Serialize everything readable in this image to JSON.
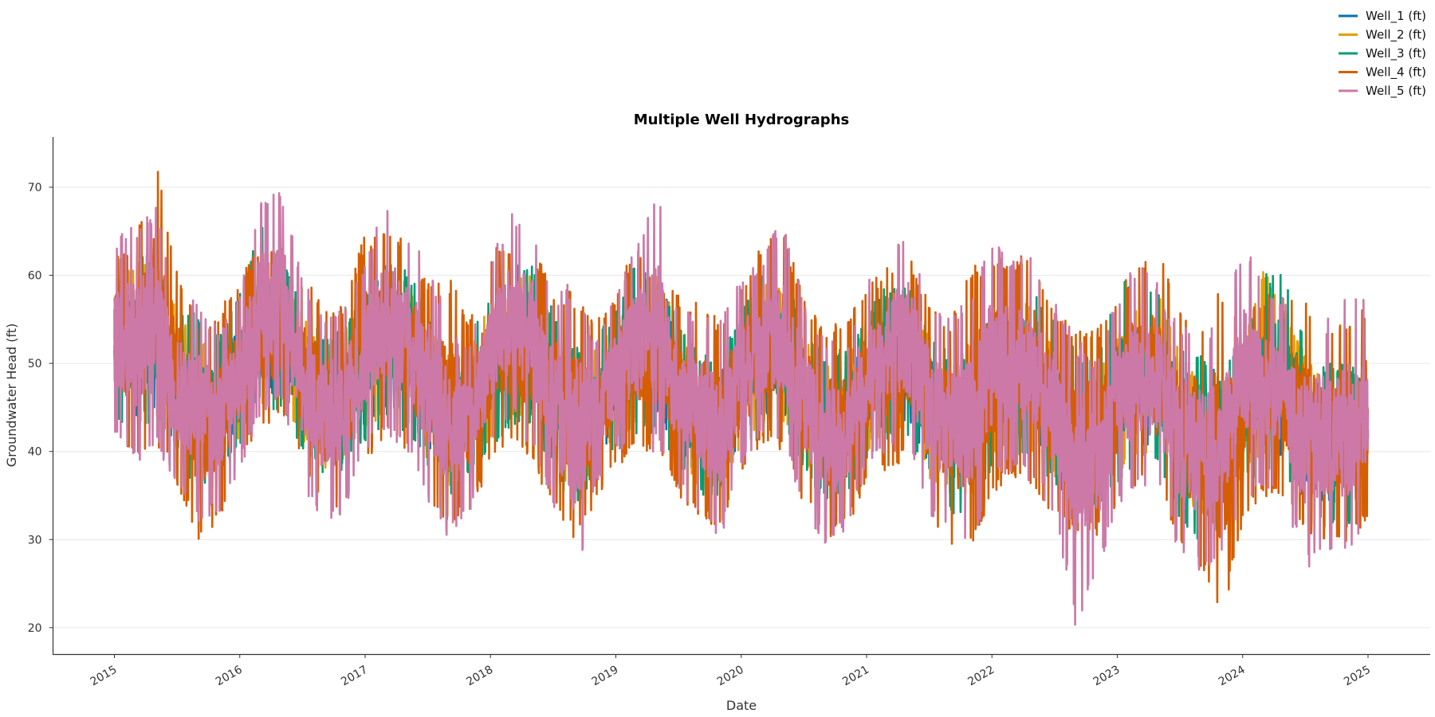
{
  "chart_data": {
    "type": "line",
    "title": "Multiple Well Hydrographs",
    "xlabel": "Date",
    "ylabel": "Groundwater Head (ft)",
    "xlim": [
      "2014-07-05",
      "2025-06-30"
    ],
    "ylim": [
      17,
      75.7
    ],
    "grid": "horizontal",
    "legend_position": "top-right",
    "x_ticks": [
      "2015",
      "2016",
      "2017",
      "2018",
      "2019",
      "2020",
      "2021",
      "2022",
      "2023",
      "2024",
      "2025"
    ],
    "y_ticks": [
      20,
      30,
      40,
      50,
      60,
      70
    ],
    "x": [
      "2015-01",
      "2015-03",
      "2015-05",
      "2015-07",
      "2015-09",
      "2015-11",
      "2016-01",
      "2016-03",
      "2016-05",
      "2016-07",
      "2016-09",
      "2016-11",
      "2017-01",
      "2017-03",
      "2017-05",
      "2017-07",
      "2017-09",
      "2017-11",
      "2018-01",
      "2018-03",
      "2018-05",
      "2018-07",
      "2018-09",
      "2018-11",
      "2019-01",
      "2019-03",
      "2019-05",
      "2019-07",
      "2019-09",
      "2019-11",
      "2020-01",
      "2020-03",
      "2020-05",
      "2020-07",
      "2020-09",
      "2020-11",
      "2021-01",
      "2021-03",
      "2021-05",
      "2021-07",
      "2021-09",
      "2021-11",
      "2022-01",
      "2022-03",
      "2022-05",
      "2022-07",
      "2022-09",
      "2022-11",
      "2023-01",
      "2023-03",
      "2023-05",
      "2023-07",
      "2023-09",
      "2023-11",
      "2024-01",
      "2024-03",
      "2024-05",
      "2024-07",
      "2024-09",
      "2024-11",
      "2025-01"
    ],
    "series": [
      {
        "name": "Well_1 (ft)",
        "color": "#0072B2",
        "low": [
          45,
          44,
          45,
          42,
          39,
          40,
          42,
          46,
          47,
          42,
          39,
          40,
          43,
          45,
          44,
          40,
          37,
          39,
          42,
          45,
          44,
          40,
          36,
          39,
          42,
          44,
          44,
          40,
          37,
          37,
          41,
          44,
          44,
          40,
          36,
          37,
          41,
          43,
          43,
          38,
          36,
          36,
          40,
          42,
          41,
          38,
          35,
          35,
          38,
          41,
          40,
          36,
          34,
          34,
          38,
          40,
          39,
          36,
          34,
          33,
          36
        ],
        "high": [
          56,
          58,
          58,
          53,
          50,
          51,
          54,
          58,
          59,
          54,
          50,
          52,
          55,
          59,
          58,
          53,
          49,
          50,
          55,
          59,
          58,
          53,
          49,
          50,
          53,
          57,
          58,
          53,
          49,
          49,
          53,
          57,
          57,
          52,
          48,
          49,
          53,
          56,
          56,
          51,
          48,
          48,
          53,
          56,
          55,
          50,
          47,
          47,
          51,
          54,
          54,
          49,
          46,
          46,
          50,
          54,
          53,
          49,
          46,
          46,
          48
        ]
      },
      {
        "name": "Well_2 (ft)",
        "color": "#E69F00",
        "low": [
          44,
          43,
          44,
          41,
          38,
          39,
          41,
          45,
          46,
          41,
          38,
          39,
          42,
          44,
          43,
          39,
          36,
          38,
          41,
          44,
          43,
          39,
          35,
          38,
          41,
          43,
          43,
          39,
          36,
          36,
          40,
          43,
          43,
          39,
          35,
          36,
          40,
          42,
          42,
          37,
          35,
          35,
          39,
          41,
          40,
          37,
          34,
          34,
          37,
          40,
          39,
          35,
          33,
          33,
          37,
          39,
          38,
          35,
          33,
          32,
          35
        ],
        "high": [
          58,
          62,
          62,
          56,
          52,
          53,
          56,
          60,
          61,
          56,
          52,
          54,
          57,
          61,
          60,
          55,
          51,
          52,
          57,
          61,
          60,
          55,
          51,
          52,
          55,
          59,
          60,
          55,
          51,
          51,
          55,
          59,
          59,
          54,
          50,
          51,
          55,
          58,
          58,
          53,
          50,
          50,
          55,
          58,
          57,
          52,
          49,
          49,
          53,
          57,
          58,
          51,
          48,
          48,
          52,
          61,
          56,
          51,
          48,
          48,
          50
        ]
      },
      {
        "name": "Well_3 (ft)",
        "color": "#009E73",
        "low": [
          43,
          42,
          43,
          40,
          35,
          38,
          40,
          44,
          45,
          40,
          37,
          38,
          41,
          43,
          42,
          38,
          35,
          37,
          40,
          43,
          42,
          38,
          33,
          37,
          40,
          42,
          42,
          38,
          35,
          35,
          39,
          42,
          42,
          38,
          34,
          35,
          39,
          41,
          41,
          36,
          33,
          31,
          38,
          40,
          39,
          36,
          33,
          33,
          36,
          39,
          38,
          32,
          29,
          30,
          36,
          38,
          37,
          34,
          31,
          31,
          34
        ],
        "high": [
          57,
          63,
          62,
          56,
          56,
          53,
          58,
          66,
          62,
          57,
          53,
          54,
          58,
          62,
          61,
          56,
          52,
          53,
          58,
          62,
          61,
          56,
          52,
          53,
          56,
          62,
          60,
          55,
          51,
          51,
          56,
          61,
          60,
          55,
          51,
          52,
          56,
          59,
          59,
          54,
          51,
          51,
          56,
          59,
          58,
          56,
          52,
          50,
          59,
          60,
          58,
          53,
          51,
          49,
          53,
          60,
          61,
          53,
          50,
          50,
          49
        ]
      },
      {
        "name": "Well_4 (ft)",
        "color": "#D55E00",
        "low": [
          42,
          39,
          41,
          36,
          30,
          32,
          38,
          42,
          44,
          38,
          33,
          34,
          38,
          42,
          40,
          35,
          31,
          33,
          38,
          41,
          39,
          33,
          30,
          34,
          38,
          40,
          40,
          35,
          32,
          31,
          37,
          41,
          40,
          34,
          30,
          31,
          36,
          38,
          39,
          33,
          29,
          28,
          35,
          37,
          36,
          32,
          30,
          30,
          34,
          36,
          35,
          29,
          27,
          20,
          32,
          35,
          34,
          31,
          29,
          29,
          32
        ],
        "high": [
          63,
          64,
          73,
          61,
          55,
          56,
          60,
          64,
          63,
          60,
          57,
          57,
          65,
          65,
          64,
          59,
          60,
          55,
          63,
          64,
          63,
          59,
          58,
          55,
          58,
          64,
          59,
          58,
          57,
          55,
          59,
          64,
          65,
          58,
          54,
          55,
          59,
          61,
          63,
          57,
          55,
          61,
          63,
          62,
          63,
          56,
          54,
          54,
          58,
          62,
          63,
          56,
          55,
          59,
          56,
          58,
          58,
          57,
          54,
          55,
          57
        ]
      },
      {
        "name": "Well_5 (ft)",
        "color": "#CC79A7",
        "low": [
          42,
          38,
          40,
          36,
          32,
          33,
          38,
          44,
          46,
          36,
          32,
          33,
          40,
          42,
          40,
          34,
          30,
          33,
          40,
          44,
          40,
          34,
          24,
          36,
          40,
          40,
          40,
          36,
          32,
          30,
          38,
          42,
          40,
          34,
          29,
          31,
          38,
          40,
          40,
          33,
          30,
          29,
          36,
          38,
          36,
          33,
          20,
          26,
          33,
          36,
          36,
          28,
          26,
          28,
          34,
          36,
          35,
          26,
          29,
          27,
          32
        ],
        "high": [
          64,
          66,
          68,
          58,
          57,
          54,
          58,
          69,
          70,
          60,
          56,
          57,
          62,
          69,
          65,
          62,
          55,
          52,
          62,
          67,
          66,
          57,
          60,
          52,
          58,
          64,
          70,
          56,
          56,
          55,
          60,
          62,
          67,
          57,
          53,
          52,
          60,
          63,
          66,
          58,
          55,
          58,
          64,
          62,
          62,
          57,
          53,
          51,
          58,
          62,
          59,
          54,
          54,
          54,
          64,
          59,
          58,
          56,
          55,
          58,
          57
        ]
      }
    ]
  }
}
